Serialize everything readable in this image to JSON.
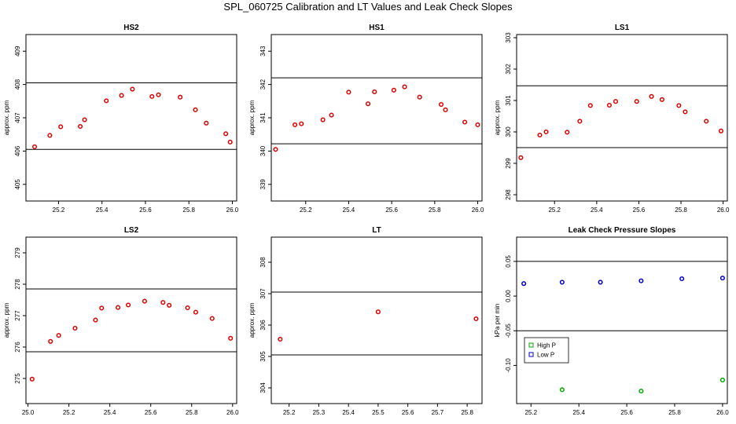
{
  "title": "SPL_060725  Calibration and LT Values and Leak Check Slopes",
  "colors": {
    "point_red": "#dd0000",
    "high_p": "#00aa00",
    "low_p": "#0000cc",
    "axis": "#000000"
  },
  "chart_data": [
    {
      "type": "scatter",
      "title": "HS2",
      "ylabel": "approx. ppm",
      "xlim": [
        25.05,
        26.02
      ],
      "ylim": [
        404.5,
        409.5
      ],
      "xticks": [
        25.2,
        25.4,
        25.6,
        25.8,
        26.0
      ],
      "xtick_labels": [
        "25.2",
        "25.4",
        "25.6",
        "25.8",
        "26.0"
      ],
      "yticks": [
        405,
        406,
        407,
        408,
        409
      ],
      "ytick_labels": [
        "405",
        "406",
        "407",
        "408",
        "409"
      ],
      "hlines": [
        406.05,
        408.05
      ],
      "series": [
        {
          "name": "HS2",
          "color": "#dd0000",
          "x": [
            25.09,
            25.16,
            25.21,
            25.3,
            25.32,
            25.42,
            25.49,
            25.54,
            25.63,
            25.66,
            25.76,
            25.83,
            25.88,
            25.97,
            25.99
          ],
          "y": [
            406.13,
            406.47,
            406.73,
            406.74,
            406.94,
            407.51,
            407.67,
            407.86,
            407.64,
            407.69,
            407.62,
            407.24,
            406.84,
            406.52,
            406.27
          ]
        }
      ]
    },
    {
      "type": "scatter",
      "title": "HS1",
      "ylabel": "approx. ppm",
      "xlim": [
        25.04,
        26.02
      ],
      "ylim": [
        338.5,
        343.5
      ],
      "xticks": [
        25.2,
        25.4,
        25.6,
        25.8,
        26.0
      ],
      "xtick_labels": [
        "25.2",
        "25.4",
        "25.6",
        "25.8",
        "26.0"
      ],
      "yticks": [
        339,
        340,
        341,
        342,
        343
      ],
      "ytick_labels": [
        "339",
        "340",
        "341",
        "342",
        "343"
      ],
      "hlines": [
        340.22,
        342.2
      ],
      "series": [
        {
          "name": "HS1",
          "color": "#dd0000",
          "x": [
            25.06,
            25.15,
            25.18,
            25.28,
            25.32,
            25.4,
            25.49,
            25.52,
            25.61,
            25.66,
            25.73,
            25.83,
            25.85,
            25.94,
            26.0
          ],
          "y": [
            340.05,
            340.79,
            340.82,
            340.94,
            341.08,
            341.77,
            341.42,
            341.78,
            341.83,
            341.93,
            341.62,
            341.4,
            341.24,
            340.87,
            340.79
          ]
        }
      ]
    },
    {
      "type": "scatter",
      "title": "LS1",
      "ylabel": "approx. ppm",
      "xlim": [
        25.02,
        26.02
      ],
      "ylim": [
        297.8,
        303.1
      ],
      "xticks": [
        25.2,
        25.4,
        25.6,
        25.8,
        26.0
      ],
      "xtick_labels": [
        "25.2",
        "25.4",
        "25.6",
        "25.8",
        "26.0"
      ],
      "yticks": [
        298,
        299,
        300,
        301,
        302,
        303
      ],
      "ytick_labels": [
        "298",
        "299",
        "300",
        "301",
        "302",
        "303"
      ],
      "hlines": [
        299.5,
        301.47
      ],
      "series": [
        {
          "name": "LS1",
          "color": "#dd0000",
          "x": [
            25.04,
            25.13,
            25.16,
            25.26,
            25.32,
            25.37,
            25.46,
            25.49,
            25.59,
            25.66,
            25.71,
            25.79,
            25.82,
            25.92,
            25.99
          ],
          "y": [
            299.18,
            299.9,
            300.0,
            299.99,
            300.34,
            300.84,
            300.85,
            300.97,
            300.97,
            301.13,
            301.03,
            300.84,
            300.64,
            300.34,
            300.03
          ]
        }
      ]
    },
    {
      "type": "scatter",
      "title": "LS2",
      "ylabel": "approx. ppm",
      "xlim": [
        24.99,
        26.02
      ],
      "ylim": [
        274.2,
        279.5
      ],
      "xticks": [
        25.0,
        25.2,
        25.4,
        25.6,
        25.8,
        26.0
      ],
      "xtick_labels": [
        "25.0",
        "25.2",
        "25.4",
        "25.6",
        "25.8",
        "26.0"
      ],
      "yticks": [
        275,
        276,
        277,
        278,
        279
      ],
      "ytick_labels": [
        "275",
        "276",
        "277",
        "278",
        "279"
      ],
      "hlines": [
        275.85,
        277.85
      ],
      "series": [
        {
          "name": "LS2",
          "color": "#dd0000",
          "x": [
            25.02,
            25.11,
            25.15,
            25.23,
            25.33,
            25.36,
            25.44,
            25.49,
            25.57,
            25.66,
            25.69,
            25.78,
            25.82,
            25.9,
            25.99
          ],
          "y": [
            274.98,
            276.18,
            276.37,
            276.6,
            276.86,
            277.24,
            277.26,
            277.34,
            277.46,
            277.42,
            277.33,
            277.25,
            277.11,
            276.91,
            276.28
          ]
        }
      ]
    },
    {
      "type": "scatter",
      "title": "LT",
      "ylabel": "approx. ppm",
      "xlim": [
        25.14,
        25.85
      ],
      "ylim": [
        303.5,
        308.8
      ],
      "xticks": [
        25.2,
        25.3,
        25.4,
        25.5,
        25.6,
        25.7,
        25.8
      ],
      "xtick_labels": [
        "25.2",
        "25.3",
        "25.4",
        "25.5",
        "25.6",
        "25.7",
        "25.8"
      ],
      "yticks": [
        304,
        305,
        306,
        307,
        308
      ],
      "ytick_labels": [
        "304",
        "305",
        "306",
        "307",
        "308"
      ],
      "hlines": [
        305.05,
        307.05
      ],
      "series": [
        {
          "name": "LT",
          "color": "#dd0000",
          "x": [
            25.17,
            25.5,
            25.83
          ],
          "y": [
            305.55,
            306.42,
            306.2
          ]
        }
      ]
    },
    {
      "type": "scatter",
      "title": "Leak Check Pressure Slopes",
      "ylabel": "kPa per min",
      "xlim": [
        25.14,
        26.02
      ],
      "ylim": [
        -0.155,
        0.085
      ],
      "xticks": [
        25.2,
        25.4,
        25.6,
        25.8,
        26.0
      ],
      "xtick_labels": [
        "25.2",
        "25.4",
        "25.6",
        "25.8",
        "26.0"
      ],
      "yticks": [
        -0.1,
        -0.05,
        0.0,
        0.05
      ],
      "ytick_labels": [
        "-0.10",
        "-0.05",
        "0.00",
        "0.05"
      ],
      "hlines": [
        0.05,
        -0.05
      ],
      "legend": {
        "position": "left-center",
        "entries": [
          "High P",
          "Low P"
        ]
      },
      "series": [
        {
          "name": "High P",
          "color": "#00aa00",
          "x": [
            25.33,
            25.66,
            26.0
          ],
          "y": [
            -0.135,
            -0.137,
            -0.121
          ]
        },
        {
          "name": "Low P",
          "color": "#0000cc",
          "x": [
            25.17,
            25.33,
            25.49,
            25.66,
            25.83,
            26.0
          ],
          "y": [
            0.018,
            0.02,
            0.02,
            0.022,
            0.025,
            0.026
          ]
        }
      ]
    }
  ]
}
